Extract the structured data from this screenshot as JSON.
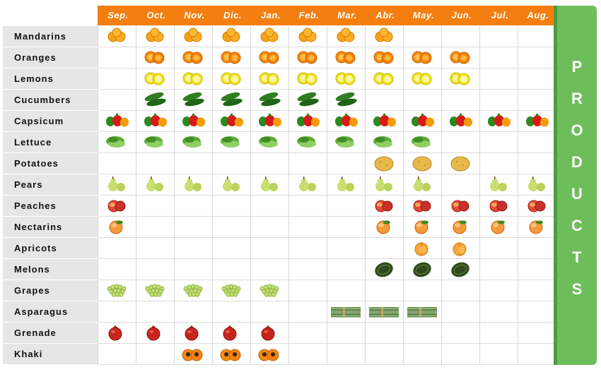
{
  "title_side": [
    "P",
    "R",
    "O",
    "D",
    "U",
    "C",
    "T",
    "S"
  ],
  "months": [
    "Sep.",
    "Oct.",
    "Nov.",
    "Dic.",
    "Jan.",
    "Feb.",
    "Mar.",
    "Abr.",
    "May.",
    "Jun.",
    "Jul.",
    "Aug."
  ],
  "products": [
    {
      "name": "Mandarins",
      "icon": "mandarin-icon",
      "months": [
        0,
        1,
        2,
        3,
        4,
        5,
        6,
        7
      ]
    },
    {
      "name": "Oranges",
      "icon": "orange-icon",
      "months": [
        1,
        2,
        3,
        4,
        5,
        6,
        7,
        8,
        9
      ]
    },
    {
      "name": "Lemons",
      "icon": "lemon-icon",
      "months": [
        1,
        2,
        3,
        4,
        5,
        6,
        7,
        8,
        9
      ]
    },
    {
      "name": "Cucumbers",
      "icon": "cucumber-icon",
      "months": [
        1,
        2,
        3,
        4,
        5,
        6
      ]
    },
    {
      "name": "Capsicum",
      "icon": "capsicum-icon",
      "months": [
        0,
        1,
        2,
        3,
        4,
        5,
        6,
        7,
        8,
        9,
        10,
        11
      ]
    },
    {
      "name": "Lettuce",
      "icon": "lettuce-icon",
      "months": [
        0,
        1,
        2,
        3,
        4,
        5,
        6,
        7,
        8
      ]
    },
    {
      "name": "Potatoes",
      "icon": "potato-icon",
      "months": [
        7,
        8,
        9
      ]
    },
    {
      "name": "Pears",
      "icon": "pear-icon",
      "months": [
        0,
        1,
        2,
        3,
        4,
        5,
        6,
        7,
        8,
        10,
        11
      ]
    },
    {
      "name": "Peaches",
      "icon": "peach-icon",
      "months": [
        0,
        7,
        8,
        9,
        10,
        11
      ]
    },
    {
      "name": "Nectarins",
      "icon": "nectarine-icon",
      "months": [
        0,
        7,
        8,
        9,
        10,
        11
      ]
    },
    {
      "name": "Apricots",
      "icon": "apricot-icon",
      "months": [
        8,
        9
      ]
    },
    {
      "name": "Melons",
      "icon": "melon-icon",
      "months": [
        7,
        8,
        9
      ]
    },
    {
      "name": "Grapes",
      "icon": "grapes-icon",
      "months": [
        0,
        1,
        2,
        3,
        4
      ]
    },
    {
      "name": "Asparagus",
      "icon": "asparagus-icon",
      "months": [
        6,
        7,
        8
      ]
    },
    {
      "name": "Grenade",
      "icon": "pomegranate-icon",
      "months": [
        0,
        1,
        2,
        3,
        4
      ]
    },
    {
      "name": "Khaki",
      "icon": "persimmon-icon",
      "months": [
        2,
        3,
        4
      ]
    }
  ],
  "colors": {
    "header": "#f47f10",
    "side": "#6dbe5a",
    "label_bg": "#e6e6e6"
  }
}
